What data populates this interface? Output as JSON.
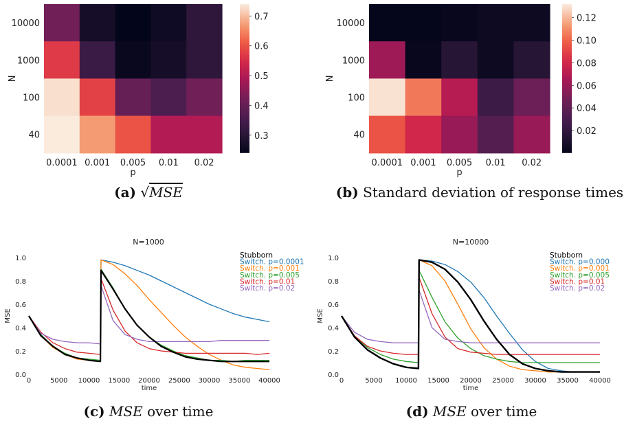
{
  "chart_data": [
    {
      "type": "heatmap",
      "id": "a",
      "xlabel": "p",
      "ylabel": "N",
      "x_ticks": [
        "0.0001",
        "0.001",
        "0.005",
        "0.01",
        "0.02"
      ],
      "y_ticks": [
        "10000",
        "1000",
        "100",
        "40"
      ],
      "values": [
        [
          0.42,
          0.27,
          0.24,
          0.26,
          0.31
        ],
        [
          0.57,
          0.33,
          0.25,
          0.27,
          0.31
        ],
        [
          0.73,
          0.58,
          0.4,
          0.36,
          0.42
        ],
        [
          0.74,
          0.67,
          0.6,
          0.5,
          0.5
        ]
      ],
      "colorbar": {
        "min": 0.24,
        "max": 0.74,
        "ticks": [
          "0.7",
          "0.6",
          "0.5",
          "0.4",
          "0.3"
        ],
        "tick_values": [
          0.7,
          0.6,
          0.5,
          0.4,
          0.3
        ]
      },
      "caption": {
        "tag": "(a)",
        "text": "MSE"
      }
    },
    {
      "type": "heatmap",
      "id": "b",
      "xlabel": "p",
      "ylabel": "N",
      "x_ticks": [
        "0.0001",
        "0.001",
        "0.005",
        "0.01",
        "0.02"
      ],
      "y_ticks": [
        "10000",
        "1000",
        "100",
        "40"
      ],
      "values": [
        [
          0.001,
          0.001,
          0.002,
          0.004,
          0.004
        ],
        [
          0.062,
          0.002,
          0.015,
          0.004,
          0.015
        ],
        [
          0.13,
          0.105,
          0.07,
          0.025,
          0.045
        ],
        [
          0.095,
          0.08,
          0.06,
          0.035,
          0.06
        ]
      ],
      "colorbar": {
        "min": 0.0,
        "max": 0.132,
        "ticks": [
          "0.12",
          "0.10",
          "0.08",
          "0.06",
          "0.04",
          "0.02"
        ],
        "tick_values": [
          0.12,
          0.1,
          0.08,
          0.06,
          0.04,
          0.02
        ]
      },
      "caption": {
        "tag": "(b)",
        "text": "Standard deviation of response times"
      }
    },
    {
      "type": "line",
      "id": "c",
      "title": "N=1000",
      "xlabel": "time",
      "ylabel": "MSE",
      "xlim": [
        0,
        40000
      ],
      "ylim": [
        0,
        1.0
      ],
      "x_ticks": [
        0,
        5000,
        10000,
        15000,
        20000,
        25000,
        30000,
        35000,
        40000
      ],
      "y_ticks": [
        "0.0",
        "0.2",
        "0.4",
        "0.6",
        "0.8",
        "1.0"
      ],
      "x_tick_labels": [
        "0",
        "5000",
        "10000",
        "15000",
        "20000",
        "25000",
        "30000",
        "35000",
        "40000"
      ],
      "series": [
        {
          "name": "Stubborn",
          "color": "#000000",
          "width": 2.2,
          "x": [
            0,
            2000,
            4000,
            6000,
            8000,
            10000,
            11900,
            12000,
            14000,
            16000,
            18000,
            20000,
            22000,
            24000,
            26000,
            28000,
            30000,
            32000,
            34000,
            36000,
            38000,
            40000
          ],
          "y": [
            0.5,
            0.33,
            0.24,
            0.17,
            0.14,
            0.12,
            0.11,
            0.89,
            0.73,
            0.56,
            0.42,
            0.32,
            0.24,
            0.19,
            0.15,
            0.13,
            0.12,
            0.11,
            0.11,
            0.11,
            0.11,
            0.11
          ]
        },
        {
          "name": "Switch. p=0.0001",
          "color": "#1f77b4",
          "width": 1.3,
          "x": [
            0,
            2000,
            4000,
            6000,
            8000,
            10000,
            11900,
            12000,
            14000,
            16000,
            18000,
            20000,
            22000,
            24000,
            26000,
            28000,
            30000,
            32000,
            34000,
            36000,
            38000,
            40000
          ],
          "y": [
            0.5,
            0.34,
            0.24,
            0.17,
            0.14,
            0.12,
            0.11,
            0.98,
            0.96,
            0.93,
            0.89,
            0.85,
            0.8,
            0.75,
            0.7,
            0.65,
            0.6,
            0.56,
            0.52,
            0.49,
            0.47,
            0.45
          ]
        },
        {
          "name": "Switch. p=0.001",
          "color": "#ff7f0e",
          "width": 1.3,
          "x": [
            0,
            2000,
            4000,
            6000,
            8000,
            10000,
            11900,
            12000,
            14000,
            16000,
            18000,
            20000,
            22000,
            24000,
            26000,
            28000,
            30000,
            32000,
            34000,
            36000,
            38000,
            40000
          ],
          "y": [
            0.5,
            0.33,
            0.23,
            0.17,
            0.13,
            0.12,
            0.11,
            0.98,
            0.94,
            0.86,
            0.76,
            0.64,
            0.53,
            0.42,
            0.32,
            0.24,
            0.17,
            0.12,
            0.08,
            0.06,
            0.05,
            0.04
          ]
        },
        {
          "name": "Switch. p=0.005",
          "color": "#2ca02c",
          "width": 1.3,
          "x": [
            0,
            2000,
            4000,
            6000,
            8000,
            10000,
            11900,
            12000,
            14000,
            16000,
            18000,
            20000,
            22000,
            24000,
            26000,
            28000,
            30000,
            32000,
            34000,
            36000,
            38000,
            40000
          ],
          "y": [
            0.5,
            0.34,
            0.24,
            0.18,
            0.14,
            0.13,
            0.12,
            0.9,
            0.74,
            0.56,
            0.42,
            0.32,
            0.25,
            0.2,
            0.16,
            0.14,
            0.12,
            0.12,
            0.11,
            0.12,
            0.12,
            0.12
          ]
        },
        {
          "name": "Switch. p=0.01",
          "color": "#d62728",
          "width": 1.3,
          "x": [
            0,
            2000,
            4000,
            6000,
            8000,
            10000,
            11900,
            12000,
            14000,
            16000,
            18000,
            20000,
            22000,
            24000,
            26000,
            28000,
            30000,
            32000,
            34000,
            36000,
            38000,
            40000
          ],
          "y": [
            0.5,
            0.36,
            0.27,
            0.22,
            0.19,
            0.18,
            0.17,
            0.82,
            0.55,
            0.37,
            0.27,
            0.22,
            0.2,
            0.19,
            0.18,
            0.18,
            0.18,
            0.18,
            0.18,
            0.18,
            0.17,
            0.18
          ]
        },
        {
          "name": "Switch. p=0.02",
          "color": "#9467bd",
          "width": 1.3,
          "x": [
            0,
            2000,
            4000,
            6000,
            8000,
            10000,
            11900,
            12000,
            14000,
            16000,
            18000,
            20000,
            22000,
            24000,
            26000,
            28000,
            30000,
            32000,
            34000,
            36000,
            38000,
            40000
          ],
          "y": [
            0.5,
            0.35,
            0.3,
            0.28,
            0.27,
            0.27,
            0.26,
            0.76,
            0.46,
            0.34,
            0.3,
            0.28,
            0.28,
            0.28,
            0.28,
            0.28,
            0.28,
            0.29,
            0.29,
            0.29,
            0.29,
            0.29
          ]
        }
      ],
      "legend_position": "top-right",
      "caption": {
        "tag": "(c)",
        "text": "MSE over time"
      }
    },
    {
      "type": "line",
      "id": "d",
      "title": "N=10000",
      "xlabel": "time",
      "ylabel": "MSE",
      "xlim": [
        0,
        40000
      ],
      "ylim": [
        0,
        1.0
      ],
      "x_ticks": [
        0,
        5000,
        10000,
        15000,
        20000,
        25000,
        30000,
        35000,
        40000
      ],
      "y_ticks": [
        "0.0",
        "0.2",
        "0.4",
        "0.6",
        "0.8",
        "1.0"
      ],
      "x_tick_labels": [
        "0",
        "5000",
        "10000",
        "15000",
        "20000",
        "25000",
        "30000",
        "35000",
        "40000"
      ],
      "series": [
        {
          "name": "Stubborn",
          "color": "#000000",
          "width": 2.4,
          "x": [
            0,
            2000,
            4000,
            6000,
            8000,
            10000,
            11900,
            12000,
            14000,
            16000,
            18000,
            20000,
            22000,
            24000,
            26000,
            28000,
            30000,
            32000,
            34000,
            36000,
            38000,
            40000
          ],
          "y": [
            0.5,
            0.32,
            0.21,
            0.14,
            0.09,
            0.06,
            0.05,
            0.98,
            0.96,
            0.9,
            0.79,
            0.64,
            0.46,
            0.3,
            0.17,
            0.09,
            0.05,
            0.03,
            0.02,
            0.02,
            0.02,
            0.02
          ]
        },
        {
          "name": "Switch. p=0.000",
          "color": "#1f77b4",
          "width": 1.3,
          "x": [
            0,
            2000,
            4000,
            6000,
            8000,
            10000,
            11900,
            12000,
            14000,
            16000,
            18000,
            20000,
            22000,
            24000,
            26000,
            28000,
            30000,
            32000,
            34000,
            36000,
            38000,
            40000
          ],
          "y": [
            0.5,
            0.32,
            0.21,
            0.14,
            0.09,
            0.06,
            0.05,
            0.98,
            0.97,
            0.94,
            0.88,
            0.79,
            0.66,
            0.5,
            0.35,
            0.21,
            0.11,
            0.05,
            0.03,
            0.02,
            0.02,
            0.02
          ]
        },
        {
          "name": "Switch. p=0.001",
          "color": "#ff7f0e",
          "width": 1.3,
          "x": [
            0,
            2000,
            4000,
            6000,
            8000,
            10000,
            11900,
            12000,
            14000,
            16000,
            18000,
            20000,
            22000,
            24000,
            26000,
            28000,
            30000,
            32000,
            34000,
            36000,
            38000,
            40000
          ],
          "y": [
            0.5,
            0.32,
            0.21,
            0.14,
            0.09,
            0.06,
            0.05,
            0.98,
            0.93,
            0.8,
            0.6,
            0.39,
            0.23,
            0.13,
            0.07,
            0.04,
            0.03,
            0.02,
            0.02,
            0.02,
            0.02,
            0.02
          ]
        },
        {
          "name": "Switch. p=0.005",
          "color": "#2ca02c",
          "width": 1.3,
          "x": [
            0,
            2000,
            4000,
            6000,
            8000,
            10000,
            11900,
            12000,
            14000,
            16000,
            18000,
            20000,
            22000,
            24000,
            26000,
            28000,
            30000,
            32000,
            34000,
            36000,
            38000,
            40000
          ],
          "y": [
            0.5,
            0.33,
            0.23,
            0.17,
            0.13,
            0.11,
            0.1,
            0.89,
            0.66,
            0.45,
            0.31,
            0.22,
            0.16,
            0.13,
            0.11,
            0.1,
            0.1,
            0.1,
            0.1,
            0.1,
            0.1,
            0.1
          ]
        },
        {
          "name": "Switch. p=0.01",
          "color": "#d62728",
          "width": 1.3,
          "x": [
            0,
            2000,
            4000,
            6000,
            8000,
            10000,
            11900,
            12000,
            14000,
            16000,
            18000,
            20000,
            22000,
            24000,
            26000,
            28000,
            30000,
            32000,
            34000,
            36000,
            38000,
            40000
          ],
          "y": [
            0.5,
            0.33,
            0.24,
            0.2,
            0.18,
            0.17,
            0.17,
            0.83,
            0.52,
            0.32,
            0.22,
            0.19,
            0.18,
            0.17,
            0.17,
            0.17,
            0.17,
            0.17,
            0.17,
            0.17,
            0.17,
            0.17
          ]
        },
        {
          "name": "Switch. p=0.02",
          "color": "#9467bd",
          "width": 1.3,
          "x": [
            0,
            2000,
            4000,
            6000,
            8000,
            10000,
            11900,
            12000,
            14000,
            16000,
            18000,
            20000,
            22000,
            24000,
            26000,
            28000,
            30000,
            32000,
            34000,
            36000,
            38000,
            40000
          ],
          "y": [
            0.5,
            0.36,
            0.3,
            0.28,
            0.27,
            0.27,
            0.27,
            0.72,
            0.4,
            0.3,
            0.28,
            0.27,
            0.27,
            0.27,
            0.27,
            0.27,
            0.27,
            0.27,
            0.27,
            0.27,
            0.27,
            0.27
          ]
        }
      ],
      "legend_position": "top-right",
      "caption": {
        "tag": "(d)",
        "text": "MSE over time"
      }
    }
  ]
}
